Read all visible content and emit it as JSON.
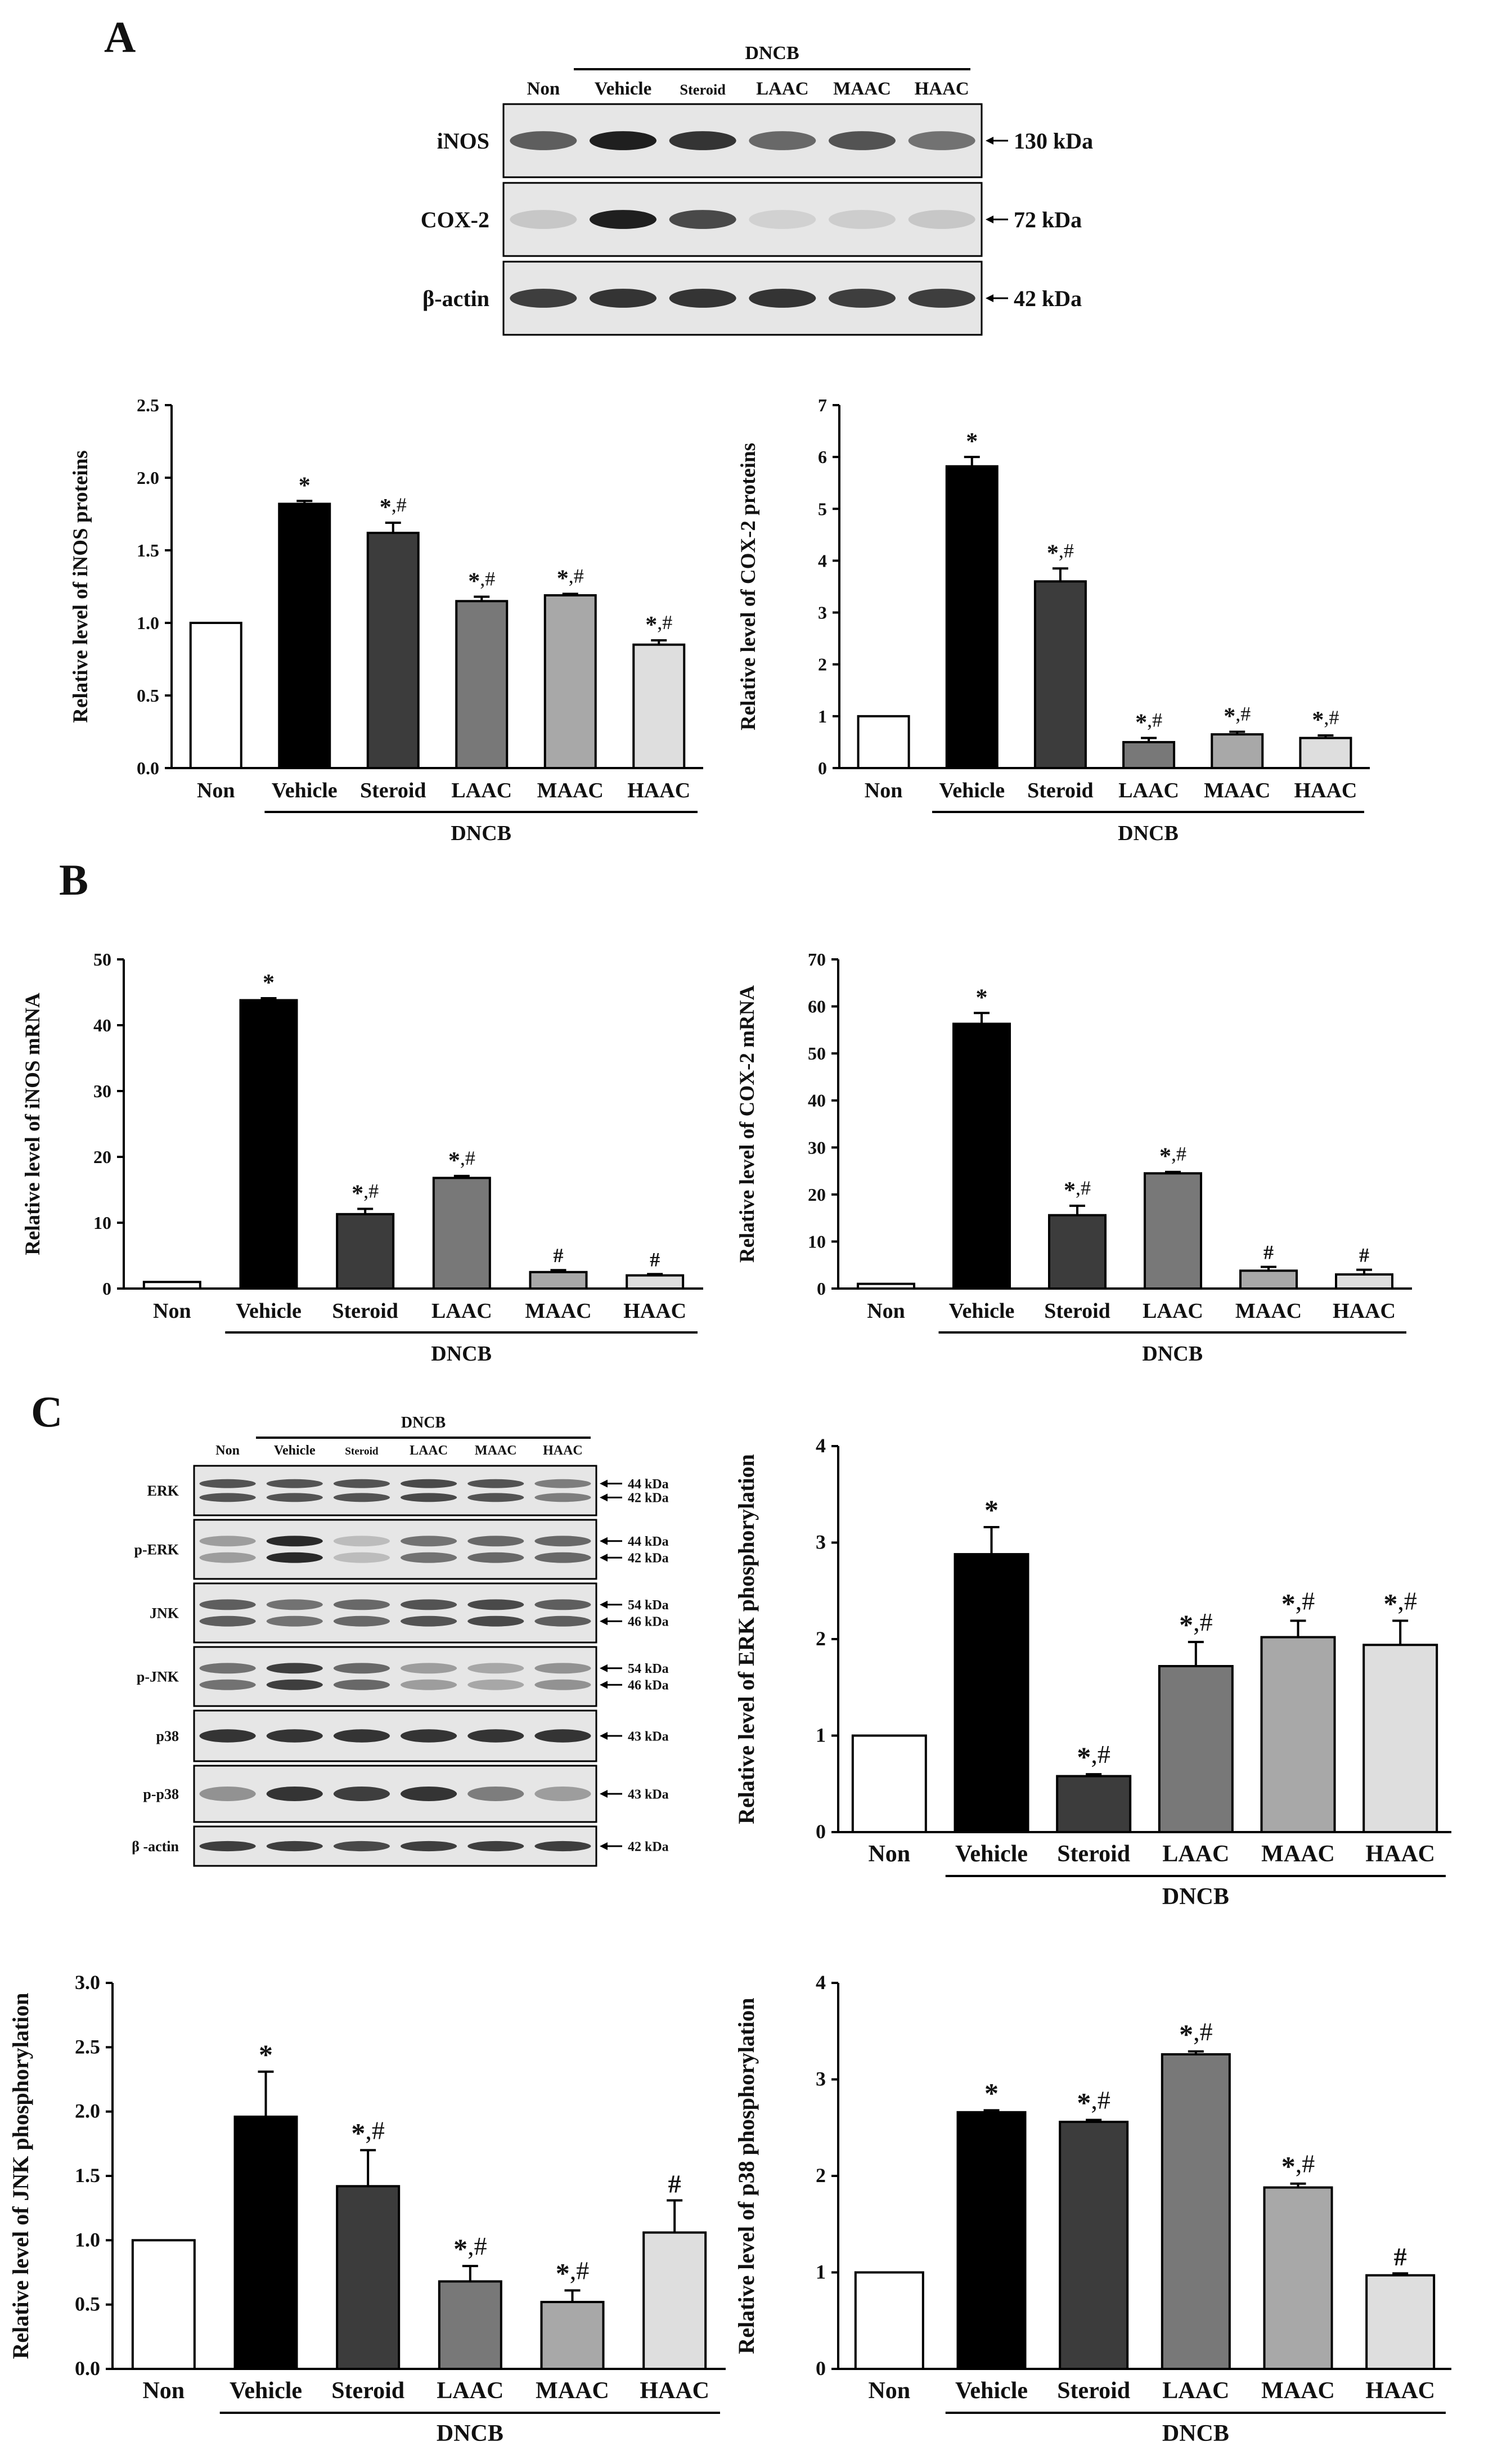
{
  "panels": {
    "a": "A",
    "b": "B",
    "c": "C"
  },
  "group_label": "DNCB",
  "blot_a": {
    "lanes": [
      "Non",
      "Vehicle",
      "Steroid",
      "LAAC",
      "MAAC",
      "HAAC"
    ],
    "rows": [
      {
        "label": "iNOS",
        "markers": [
          "130 kDa"
        ],
        "intensity": [
          0.65,
          0.95,
          0.85,
          0.6,
          0.7,
          0.55
        ]
      },
      {
        "label": "COX-2",
        "markers": [
          "72 kDa"
        ],
        "intensity": [
          0.15,
          0.95,
          0.75,
          0.1,
          0.12,
          0.15
        ]
      },
      {
        "label": "β-actin",
        "markers": [
          "42 kDa"
        ],
        "intensity": [
          0.8,
          0.85,
          0.85,
          0.85,
          0.8,
          0.8
        ]
      }
    ]
  },
  "blot_c": {
    "lanes": [
      "Non",
      "Vehicle",
      "Steroid",
      "LAAC",
      "MAAC",
      "HAAC"
    ],
    "rows": [
      {
        "label": "ERK",
        "markers": [
          "44 kDa",
          "42 kDa"
        ],
        "intensity": [
          0.7,
          0.7,
          0.7,
          0.75,
          0.7,
          0.5
        ]
      },
      {
        "label": "p-ERK",
        "markers": [
          "44 kDa",
          "42 kDa"
        ],
        "intensity": [
          0.35,
          0.9,
          0.2,
          0.55,
          0.6,
          0.6
        ]
      },
      {
        "label": "JNK",
        "markers": [
          "54 kDa",
          "46 kDa"
        ],
        "intensity": [
          0.65,
          0.55,
          0.6,
          0.7,
          0.75,
          0.65
        ]
      },
      {
        "label": "p-JNK",
        "markers": [
          "54 kDa",
          "46 kDa"
        ],
        "intensity": [
          0.55,
          0.8,
          0.6,
          0.35,
          0.3,
          0.4
        ]
      },
      {
        "label": "p38",
        "markers": [
          "43 kDa"
        ],
        "intensity": [
          0.85,
          0.85,
          0.85,
          0.85,
          0.85,
          0.85
        ]
      },
      {
        "label": "p-p38",
        "markers": [
          "43 kDa"
        ],
        "intensity": [
          0.4,
          0.85,
          0.8,
          0.85,
          0.5,
          0.35
        ]
      },
      {
        "label": "β -actin",
        "markers": [
          "42 kDa"
        ],
        "intensity": [
          0.8,
          0.8,
          0.75,
          0.8,
          0.8,
          0.8
        ]
      }
    ]
  },
  "bar_colors": [
    "#ffffff",
    "#000000",
    "#3c3c3c",
    "#787878",
    "#a8a8a8",
    "#dedede"
  ],
  "chart_data": [
    {
      "type": "bar",
      "categories": [
        "Non",
        "Vehicle",
        "Steroid",
        "LAAC",
        "MAAC",
        "HAAC"
      ],
      "values": [
        1.0,
        1.82,
        1.62,
        1.15,
        1.19,
        0.85
      ],
      "errors": [
        0.0,
        0.02,
        0.07,
        0.03,
        0.01,
        0.03
      ],
      "annotations": [
        "",
        "*",
        "*,#",
        "*,#",
        "*,#",
        "*,#"
      ],
      "ylabel": "Relative level of iNOS proteins",
      "xgroup_label": "DNCB",
      "ylim": [
        0,
        2.5
      ],
      "yticks": [
        "0.0",
        "0.5",
        "1.0",
        "1.5",
        "2.0",
        "2.5"
      ]
    },
    {
      "type": "bar",
      "categories": [
        "Non",
        "Vehicle",
        "Steroid",
        "LAAC",
        "MAAC",
        "HAAC"
      ],
      "values": [
        1.0,
        5.82,
        3.6,
        0.5,
        0.65,
        0.58
      ],
      "errors": [
        0.0,
        0.18,
        0.25,
        0.08,
        0.05,
        0.05
      ],
      "annotations": [
        "",
        "*",
        "*,#",
        "*,#",
        "*,#",
        "*,#"
      ],
      "ylabel": "Relative level of COX-2 proteins",
      "xgroup_label": "DNCB",
      "ylim": [
        0,
        7
      ],
      "yticks": [
        "0",
        "1",
        "2",
        "3",
        "4",
        "5",
        "6",
        "7"
      ]
    },
    {
      "type": "bar",
      "categories": [
        "Non",
        "Vehicle",
        "Steroid",
        "LAAC",
        "MAAC",
        "HAAC"
      ],
      "values": [
        1.0,
        43.8,
        11.3,
        16.8,
        2.5,
        2.0
      ],
      "errors": [
        0.0,
        0.3,
        0.8,
        0.3,
        0.3,
        0.2
      ],
      "annotations": [
        "",
        "*",
        "*,#",
        "*,#",
        "#",
        "#"
      ],
      "ylabel": "Relative level of iNOS mRNA",
      "xgroup_label": "DNCB",
      "ylim": [
        0,
        50
      ],
      "yticks": [
        "0",
        "10",
        "20",
        "30",
        "40",
        "50"
      ]
    },
    {
      "type": "bar",
      "categories": [
        "Non",
        "Vehicle",
        "Steroid",
        "LAAC",
        "MAAC",
        "HAAC"
      ],
      "values": [
        1.0,
        56.3,
        15.6,
        24.5,
        3.8,
        3.0
      ],
      "errors": [
        0.0,
        2.3,
        2.0,
        0.3,
        0.8,
        1.0
      ],
      "annotations": [
        "",
        "*",
        "*,#",
        "*,#",
        "#",
        "#"
      ],
      "ylabel": "Relative level of COX-2 mRNA",
      "xgroup_label": "DNCB",
      "ylim": [
        0,
        70
      ],
      "yticks": [
        "0",
        "10",
        "20",
        "30",
        "40",
        "50",
        "60",
        "70"
      ]
    },
    {
      "type": "bar",
      "categories": [
        "Non",
        "Vehicle",
        "Steroid",
        "LAAC",
        "MAAC",
        "HAAC"
      ],
      "values": [
        1.0,
        2.88,
        0.58,
        1.72,
        2.02,
        1.94
      ],
      "errors": [
        0.0,
        0.28,
        0.02,
        0.25,
        0.17,
        0.25
      ],
      "annotations": [
        "",
        "*",
        "*,#",
        "*,#",
        "*,#",
        "*,#"
      ],
      "ylabel": "Relative level of ERK phosphorylation",
      "xgroup_label": "DNCB",
      "ylim": [
        0,
        4
      ],
      "yticks": [
        "0",
        "1",
        "2",
        "3",
        "4"
      ]
    },
    {
      "type": "bar",
      "categories": [
        "Non",
        "Vehicle",
        "Steroid",
        "LAAC",
        "MAAC",
        "HAAC"
      ],
      "values": [
        1.0,
        1.96,
        1.42,
        0.68,
        0.52,
        1.06
      ],
      "errors": [
        0.0,
        0.35,
        0.28,
        0.12,
        0.09,
        0.25
      ],
      "annotations": [
        "",
        "*",
        "*,#",
        "*,#",
        "*,#",
        "#"
      ],
      "ylabel": "Relative level of JNK phosphorylation",
      "xgroup_label": "DNCB",
      "ylim": [
        0,
        3.0
      ],
      "yticks": [
        "0.0",
        "0.5",
        "1.0",
        "1.5",
        "2.0",
        "2.5",
        "3.0"
      ]
    },
    {
      "type": "bar",
      "categories": [
        "Non",
        "Vehicle",
        "Steroid",
        "LAAC",
        "MAAC",
        "HAAC"
      ],
      "values": [
        1.0,
        2.66,
        2.56,
        3.26,
        1.88,
        0.97
      ],
      "errors": [
        0.0,
        0.02,
        0.02,
        0.03,
        0.04,
        0.02
      ],
      "annotations": [
        "",
        "*",
        "*,#",
        "*,#",
        "*,#",
        "#"
      ],
      "ylabel": "Relative level of p38 phosphorylation",
      "xgroup_label": "DNCB",
      "ylim": [
        0,
        4
      ],
      "yticks": [
        "0",
        "1",
        "2",
        "3",
        "4"
      ]
    }
  ]
}
